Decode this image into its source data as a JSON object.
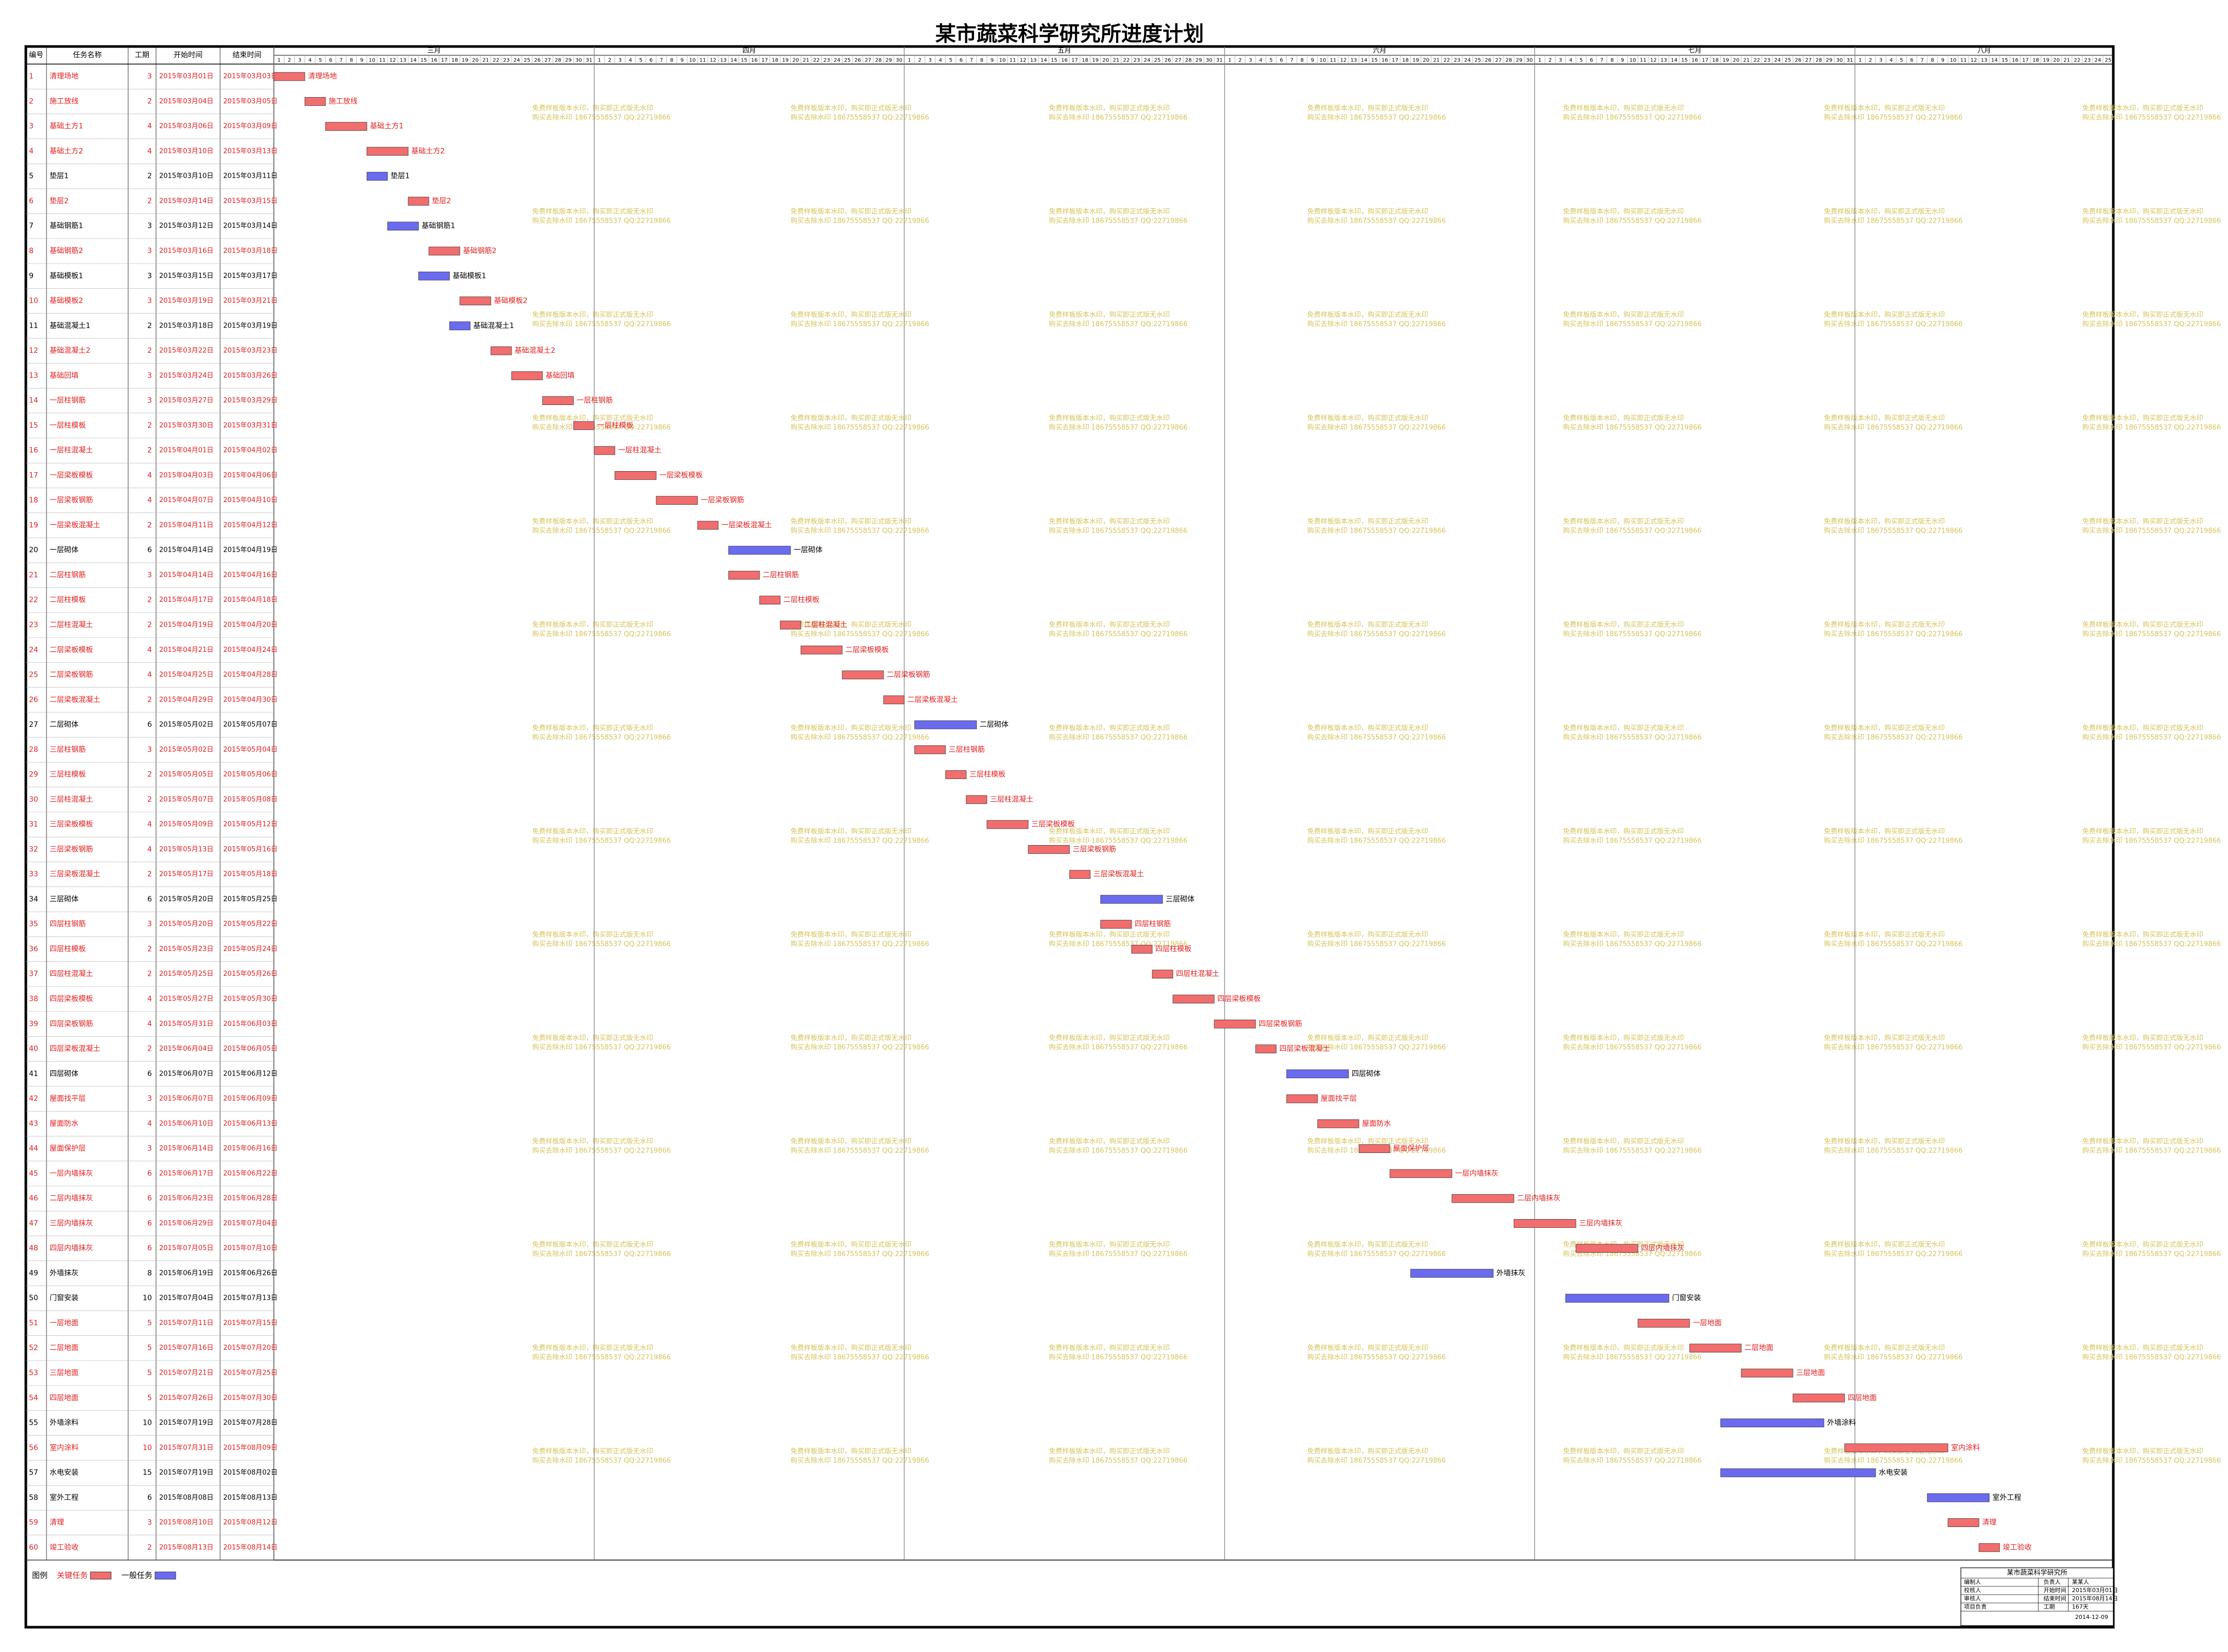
{
  "title": "某市蔬菜科学研究所进度计划",
  "columns": [
    "编号",
    "任务名称",
    "工期",
    "开始时间",
    "结束时间"
  ],
  "months": [
    {
      "name": "三月",
      "days": [
        1,
        2,
        3,
        4,
        5,
        6,
        7,
        8,
        9,
        10,
        11,
        12,
        13,
        14,
        15,
        16,
        17,
        18,
        19,
        20,
        21,
        22,
        23,
        24,
        25,
        26,
        27,
        28,
        29,
        30,
        31
      ]
    },
    {
      "name": "四月",
      "days": [
        1,
        2,
        3,
        4,
        5,
        6,
        7,
        8,
        9,
        10,
        11,
        12,
        13,
        14,
        15,
        16,
        17,
        18,
        19,
        20,
        21,
        22,
        23,
        24,
        25,
        26,
        27,
        28,
        29,
        30
      ]
    },
    {
      "name": "五月",
      "days": [
        1,
        2,
        3,
        4,
        5,
        6,
        7,
        8,
        9,
        10,
        11,
        12,
        13,
        14,
        15,
        16,
        17,
        18,
        19,
        20,
        21,
        22,
        23,
        24,
        25,
        26,
        27,
        28,
        29,
        30,
        31
      ]
    },
    {
      "name": "六月",
      "days": [
        1,
        2,
        3,
        4,
        5,
        6,
        7,
        8,
        9,
        10,
        11,
        12,
        13,
        14,
        15,
        16,
        17,
        18,
        19,
        20,
        21,
        22,
        23,
        24,
        25,
        26,
        27,
        28,
        29,
        30
      ]
    },
    {
      "name": "七月",
      "days": [
        1,
        2,
        3,
        4,
        5,
        6,
        7,
        8,
        9,
        10,
        11,
        12,
        13,
        14,
        15,
        16,
        17,
        18,
        19,
        20,
        21,
        22,
        23,
        24,
        25,
        26,
        27,
        28,
        29,
        30,
        31
      ]
    },
    {
      "name": "八月",
      "days": [
        1,
        2,
        3,
        4,
        5,
        6,
        7,
        8,
        9,
        10,
        11,
        12,
        13,
        14,
        15,
        16,
        17,
        18,
        19,
        20,
        21,
        22,
        23,
        24,
        25
      ]
    }
  ],
  "tasks": [
    {
      "id": 1,
      "name": "清理场地",
      "duration": 3,
      "start": "2015年03月01日",
      "end": "2015年03月03日",
      "critical": true
    },
    {
      "id": 2,
      "name": "施工放线",
      "duration": 2,
      "start": "2015年03月04日",
      "end": "2015年03月05日",
      "critical": true
    },
    {
      "id": 3,
      "name": "基础土方1",
      "duration": 4,
      "start": "2015年03月06日",
      "end": "2015年03月09日",
      "critical": true
    },
    {
      "id": 4,
      "name": "基础土方2",
      "duration": 4,
      "start": "2015年03月10日",
      "end": "2015年03月13日",
      "critical": true
    },
    {
      "id": 5,
      "name": "垫层1",
      "duration": 2,
      "start": "2015年03月10日",
      "end": "2015年03月11日",
      "critical": false
    },
    {
      "id": 6,
      "name": "垫层2",
      "duration": 2,
      "start": "2015年03月14日",
      "end": "2015年03月15日",
      "critical": true
    },
    {
      "id": 7,
      "name": "基础钢筋1",
      "duration": 3,
      "start": "2015年03月12日",
      "end": "2015年03月14日",
      "critical": false
    },
    {
      "id": 8,
      "name": "基础钢筋2",
      "duration": 3,
      "start": "2015年03月16日",
      "end": "2015年03月18日",
      "critical": true
    },
    {
      "id": 9,
      "name": "基础模板1",
      "duration": 3,
      "start": "2015年03月15日",
      "end": "2015年03月17日",
      "critical": false
    },
    {
      "id": 10,
      "name": "基础模板2",
      "duration": 3,
      "start": "2015年03月19日",
      "end": "2015年03月21日",
      "critical": true
    },
    {
      "id": 11,
      "name": "基础混凝土1",
      "duration": 2,
      "start": "2015年03月18日",
      "end": "2015年03月19日",
      "critical": false
    },
    {
      "id": 12,
      "name": "基础混凝土2",
      "duration": 2,
      "start": "2015年03月22日",
      "end": "2015年03月23日",
      "critical": true
    },
    {
      "id": 13,
      "name": "基础回填",
      "duration": 3,
      "start": "2015年03月24日",
      "end": "2015年03月26日",
      "critical": true
    },
    {
      "id": 14,
      "name": "一层柱钢筋",
      "duration": 3,
      "start": "2015年03月27日",
      "end": "2015年03月29日",
      "critical": true
    },
    {
      "id": 15,
      "name": "一层柱模板",
      "duration": 2,
      "start": "2015年03月30日",
      "end": "2015年03月31日",
      "critical": true
    },
    {
      "id": 16,
      "name": "一层柱混凝土",
      "duration": 2,
      "start": "2015年04月01日",
      "end": "2015年04月02日",
      "critical": true
    },
    {
      "id": 17,
      "name": "一层梁板模板",
      "duration": 4,
      "start": "2015年04月03日",
      "end": "2015年04月06日",
      "critical": true
    },
    {
      "id": 18,
      "name": "一层梁板钢筋",
      "duration": 4,
      "start": "2015年04月07日",
      "end": "2015年04月10日",
      "critical": true
    },
    {
      "id": 19,
      "name": "一层梁板混凝土",
      "duration": 2,
      "start": "2015年04月11日",
      "end": "2015年04月12日",
      "critical": true
    },
    {
      "id": 20,
      "name": "一层砌体",
      "duration": 6,
      "start": "2015年04月14日",
      "end": "2015年04月19日",
      "critical": false
    },
    {
      "id": 21,
      "name": "二层柱钢筋",
      "duration": 3,
      "start": "2015年04月14日",
      "end": "2015年04月16日",
      "critical": true
    },
    {
      "id": 22,
      "name": "二层柱模板",
      "duration": 2,
      "start": "2015年04月17日",
      "end": "2015年04月18日",
      "critical": true
    },
    {
      "id": 23,
      "name": "二层柱混凝土",
      "duration": 2,
      "start": "2015年04月19日",
      "end": "2015年04月20日",
      "critical": true
    },
    {
      "id": 24,
      "name": "二层梁板模板",
      "duration": 4,
      "start": "2015年04月21日",
      "end": "2015年04月24日",
      "critical": true
    },
    {
      "id": 25,
      "name": "二层梁板钢筋",
      "duration": 4,
      "start": "2015年04月25日",
      "end": "2015年04月28日",
      "critical": true
    },
    {
      "id": 26,
      "name": "二层梁板混凝土",
      "duration": 2,
      "start": "2015年04月29日",
      "end": "2015年04月30日",
      "critical": true
    },
    {
      "id": 27,
      "name": "二层砌体",
      "duration": 6,
      "start": "2015年05月02日",
      "end": "2015年05月07日",
      "critical": false
    },
    {
      "id": 28,
      "name": "三层柱钢筋",
      "duration": 3,
      "start": "2015年05月02日",
      "end": "2015年05月04日",
      "critical": true
    },
    {
      "id": 29,
      "name": "三层柱模板",
      "duration": 2,
      "start": "2015年05月05日",
      "end": "2015年05月06日",
      "critical": true
    },
    {
      "id": 30,
      "name": "三层柱混凝土",
      "duration": 2,
      "start": "2015年05月07日",
      "end": "2015年05月08日",
      "critical": true
    },
    {
      "id": 31,
      "name": "三层梁板模板",
      "duration": 4,
      "start": "2015年05月09日",
      "end": "2015年05月12日",
      "critical": true
    },
    {
      "id": 32,
      "name": "三层梁板钢筋",
      "duration": 4,
      "start": "2015年05月13日",
      "end": "2015年05月16日",
      "critical": true
    },
    {
      "id": 33,
      "name": "三层梁板混凝土",
      "duration": 2,
      "start": "2015年05月17日",
      "end": "2015年05月18日",
      "critical": true
    },
    {
      "id": 34,
      "name": "三层砌体",
      "duration": 6,
      "start": "2015年05月20日",
      "end": "2015年05月25日",
      "critical": false
    },
    {
      "id": 35,
      "name": "四层柱钢筋",
      "duration": 3,
      "start": "2015年05月20日",
      "end": "2015年05月22日",
      "critical": true
    },
    {
      "id": 36,
      "name": "四层柱模板",
      "duration": 2,
      "start": "2015年05月23日",
      "end": "2015年05月24日",
      "critical": true
    },
    {
      "id": 37,
      "name": "四层柱混凝土",
      "duration": 2,
      "start": "2015年05月25日",
      "end": "2015年05月26日",
      "critical": true
    },
    {
      "id": 38,
      "name": "四层梁板模板",
      "duration": 4,
      "start": "2015年05月27日",
      "end": "2015年05月30日",
      "critical": true
    },
    {
      "id": 39,
      "name": "四层梁板钢筋",
      "duration": 4,
      "start": "2015年05月31日",
      "end": "2015年06月03日",
      "critical": true
    },
    {
      "id": 40,
      "name": "四层梁板混凝土",
      "duration": 2,
      "start": "2015年06月04日",
      "end": "2015年06月05日",
      "critical": true
    },
    {
      "id": 41,
      "name": "四层砌体",
      "duration": 6,
      "start": "2015年06月07日",
      "end": "2015年06月12日",
      "critical": false
    },
    {
      "id": 42,
      "name": "屋面找平层",
      "duration": 3,
      "start": "2015年06月07日",
      "end": "2015年06月09日",
      "critical": true
    },
    {
      "id": 43,
      "name": "屋面防水",
      "duration": 4,
      "start": "2015年06月10日",
      "end": "2015年06月13日",
      "critical": true
    },
    {
      "id": 44,
      "name": "屋面保护层",
      "duration": 3,
      "start": "2015年06月14日",
      "end": "2015年06月16日",
      "critical": true
    },
    {
      "id": 45,
      "name": "一层内墙抹灰",
      "duration": 6,
      "start": "2015年06月17日",
      "end": "2015年06月22日",
      "critical": true
    },
    {
      "id": 46,
      "name": "二层内墙抹灰",
      "duration": 6,
      "start": "2015年06月23日",
      "end": "2015年06月28日",
      "critical": true
    },
    {
      "id": 47,
      "name": "三层内墙抹灰",
      "duration": 6,
      "start": "2015年06月29日",
      "end": "2015年07月04日",
      "critical": true
    },
    {
      "id": 48,
      "name": "四层内墙抹灰",
      "duration": 6,
      "start": "2015年07月05日",
      "end": "2015年07月10日",
      "critical": true
    },
    {
      "id": 49,
      "name": "外墙抹灰",
      "duration": 8,
      "start": "2015年06月19日",
      "end": "2015年06月26日",
      "critical": false
    },
    {
      "id": 50,
      "name": "门窗安装",
      "duration": 10,
      "start": "2015年07月04日",
      "end": "2015年07月13日",
      "critical": false
    },
    {
      "id": 51,
      "name": "一层地面",
      "duration": 5,
      "start": "2015年07月11日",
      "end": "2015年07月15日",
      "critical": true
    },
    {
      "id": 52,
      "name": "二层地面",
      "duration": 5,
      "start": "2015年07月16日",
      "end": "2015年07月20日",
      "critical": true
    },
    {
      "id": 53,
      "name": "三层地面",
      "duration": 5,
      "start": "2015年07月21日",
      "end": "2015年07月25日",
      "critical": true
    },
    {
      "id": 54,
      "name": "四层地面",
      "duration": 5,
      "start": "2015年07月26日",
      "end": "2015年07月30日",
      "critical": true
    },
    {
      "id": 55,
      "name": "外墙涂料",
      "duration": 10,
      "start": "2015年07月19日",
      "end": "2015年07月28日",
      "critical": false
    },
    {
      "id": 56,
      "name": "室内涂料",
      "duration": 10,
      "start": "2015年07月31日",
      "end": "2015年08月09日",
      "critical": true
    },
    {
      "id": 57,
      "name": "水电安装",
      "duration": 15,
      "start": "2015年07月19日",
      "end": "2015年08月02日",
      "critical": false
    },
    {
      "id": 58,
      "name": "室外工程",
      "duration": 6,
      "start": "2015年08月08日",
      "end": "2015年08月13日",
      "critical": false
    },
    {
      "id": 59,
      "name": "清理",
      "duration": 3,
      "start": "2015年08月10日",
      "end": "2015年08月12日",
      "critical": true
    },
    {
      "id": 60,
      "name": "竣工验收",
      "duration": 2,
      "start": "2015年08月13日",
      "end": "2015年08月14日",
      "critical": true
    }
  ],
  "colors": {
    "critical": "#f26d6d",
    "normal": "#6b6bf0",
    "critical_text": "#e02020",
    "watermark": "#d4c35a"
  },
  "legend": {
    "label": "图例",
    "critical": "关键任务",
    "normal": "一般任务"
  },
  "watermark": [
    "免费样板版本水印，购买即正式版无水印",
    "购买去除水印 18675558537 QQ:22719866"
  ],
  "title_block": {
    "org": "某市蔬菜科学研究所",
    "left": [
      "编制人",
      "校核人",
      "审核人",
      "项目负责"
    ],
    "right": [
      [
        "负责人",
        "某某人"
      ],
      [
        "开始时间",
        "2015年03月01日"
      ],
      [
        "结束时间",
        "2015年08月14日"
      ],
      [
        "工期",
        "167天"
      ]
    ],
    "date": "2014-12-09"
  }
}
